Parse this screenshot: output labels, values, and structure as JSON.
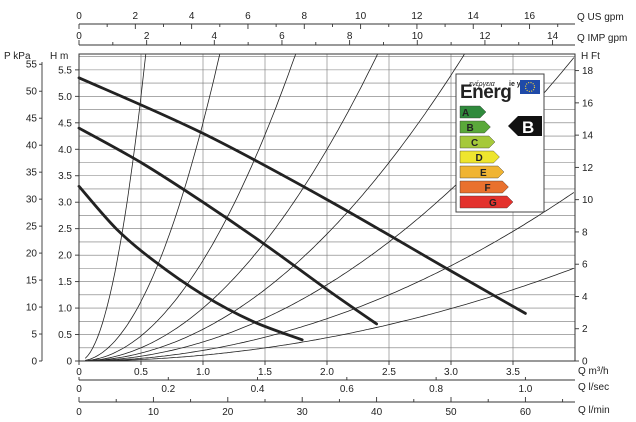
{
  "chart_data": {
    "type": "line",
    "title": "",
    "grid": true,
    "x_axes": {
      "us_gpm": {
        "label": "Q US gpm",
        "ticks": [
          "0",
          "2",
          "4",
          "6",
          "8",
          "10",
          "12",
          "14",
          "16"
        ]
      },
      "imp_gpm": {
        "label": "Q IMP gpm",
        "ticks": [
          "0",
          "2",
          "4",
          "6",
          "8",
          "10",
          "12",
          "14"
        ]
      },
      "m3h": {
        "label": "Q m³/h",
        "ticks": [
          "0",
          "0.5",
          "1.0",
          "1.5",
          "2.0",
          "2.5",
          "3.0",
          "3.5"
        ],
        "range": [
          0,
          4
        ]
      },
      "lsec": {
        "label": "Q l/sec",
        "ticks": [
          "0",
          "0.2",
          "0.4",
          "0.6",
          "0.8",
          "1.0"
        ]
      },
      "lmin": {
        "label": "Q l/min",
        "ticks": [
          "0",
          "10",
          "20",
          "30",
          "40",
          "50",
          "60"
        ]
      }
    },
    "y_axes": {
      "kpa": {
        "label": "P kPa",
        "ticks": [
          "0",
          "5",
          "10",
          "15",
          "20",
          "25",
          "30",
          "35",
          "40",
          "45",
          "50",
          "55"
        ]
      },
      "m": {
        "label": "H m",
        "ticks": [
          "0",
          "0.5",
          "1.0",
          "1.5",
          "2.0",
          "2.5",
          "3.0",
          "3.5",
          "4.0",
          "4.5",
          "5.0",
          "5.5"
        ],
        "range": [
          0,
          5.8
        ]
      },
      "ft": {
        "label": "H Ft",
        "ticks": [
          "0",
          "2",
          "4",
          "6",
          "8",
          "10",
          "12",
          "14",
          "16",
          "18"
        ]
      }
    },
    "series": [
      {
        "values_x": [
          0,
          0.3,
          0.6,
          1.0,
          1.4,
          1.8
        ],
        "values_y": [
          3.3,
          2.5,
          1.9,
          1.25,
          0.75,
          0.4
        ]
      },
      {
        "values_x": [
          0,
          0.5,
          1.0,
          1.5,
          2.0,
          2.4
        ],
        "values_y": [
          4.4,
          3.75,
          3.0,
          2.2,
          1.35,
          0.7
        ]
      },
      {
        "values_x": [
          0,
          1.0,
          2.0,
          3.0,
          3.6
        ],
        "values_y": [
          5.35,
          4.3,
          3.05,
          1.7,
          0.9
        ]
      }
    ],
    "system_curves_k": [
      20,
      4.5,
      1.9,
      1.0,
      0.6,
      0.36,
      0.2,
      0.11
    ],
    "energy_label": {
      "title": "Energ",
      "title_small": "ενέργεια",
      "side_letters": "ie y",
      "rating": "B",
      "classes": [
        {
          "letter": "A",
          "color": "#2f8a3c"
        },
        {
          "letter": "B",
          "color": "#5aa83a"
        },
        {
          "letter": "C",
          "color": "#a6c93a"
        },
        {
          "letter": "D",
          "color": "#eee52e"
        },
        {
          "letter": "E",
          "color": "#f0b432"
        },
        {
          "letter": "F",
          "color": "#e9712e"
        },
        {
          "letter": "G",
          "color": "#e3322d"
        }
      ]
    }
  }
}
